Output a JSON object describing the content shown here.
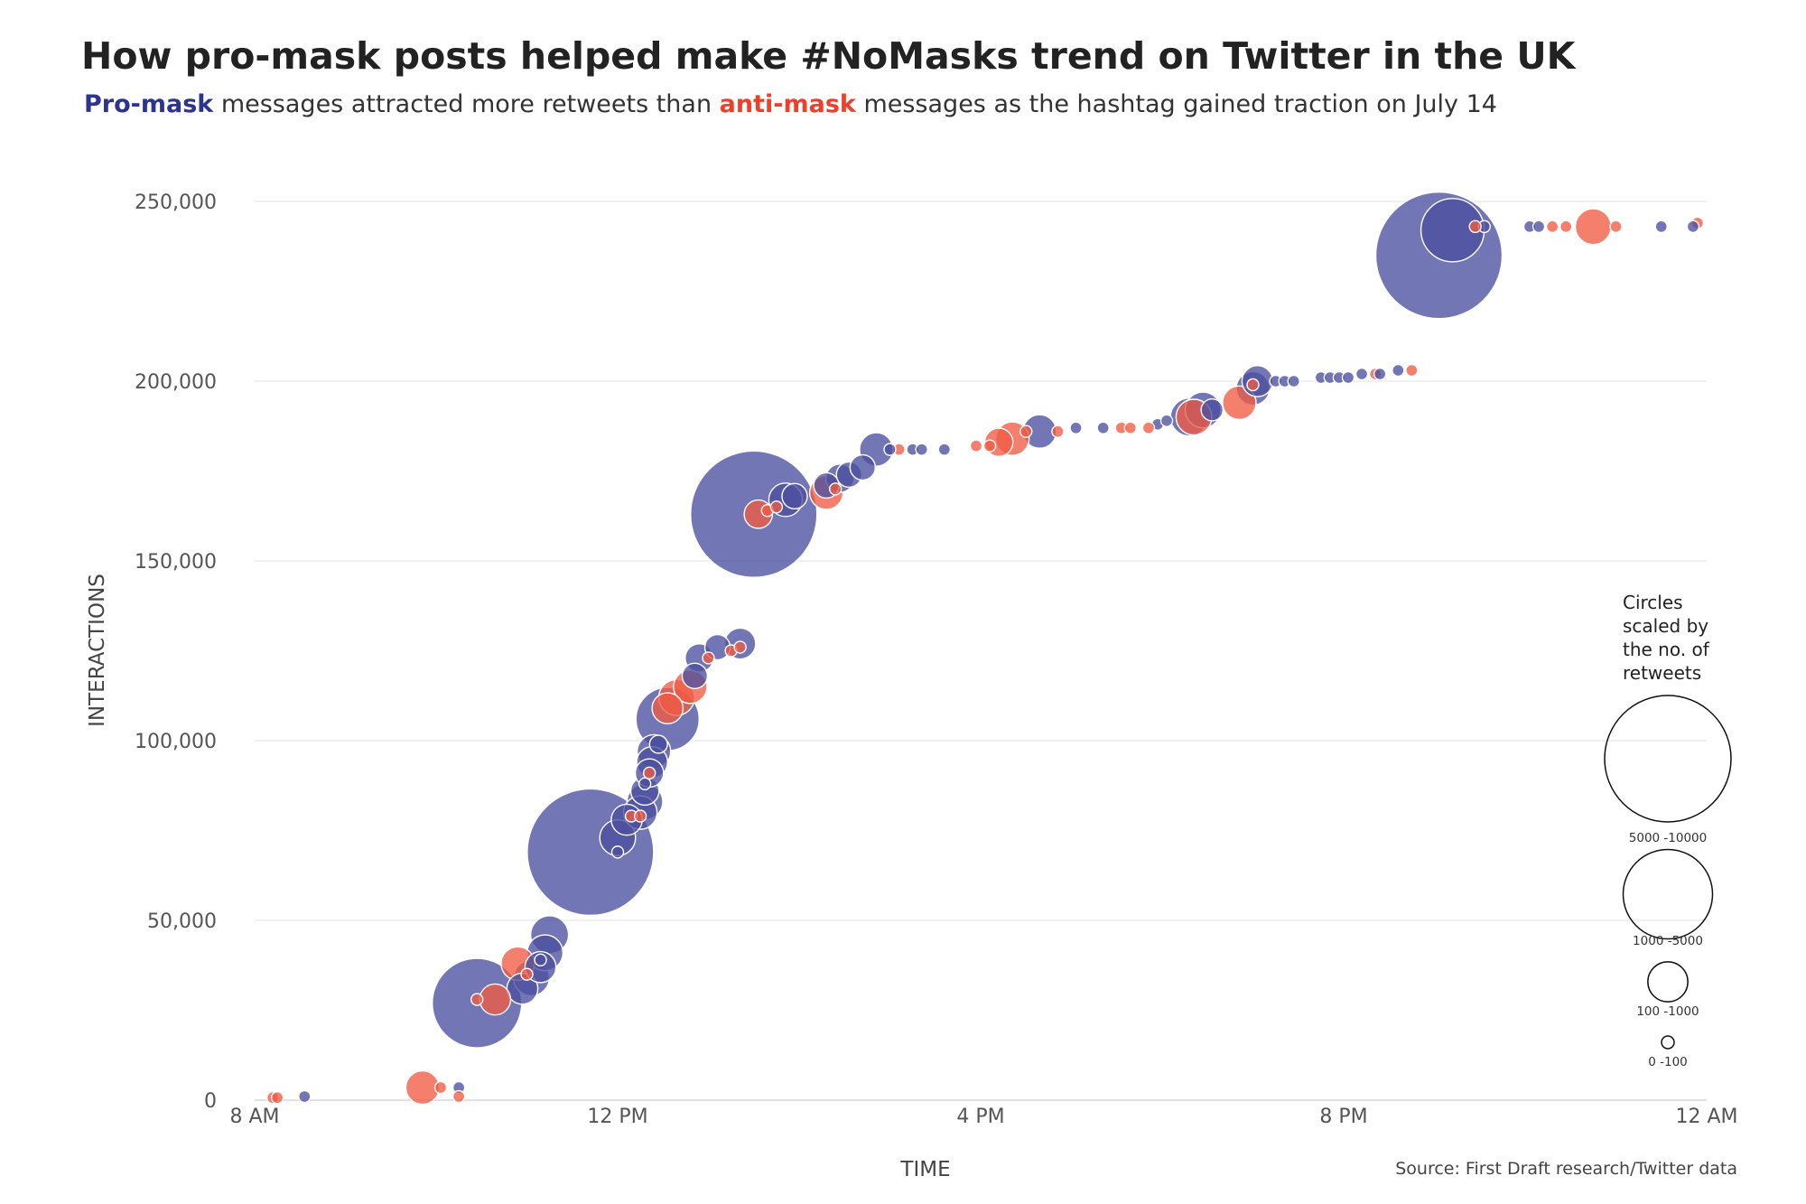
{
  "title": "How pro-mask posts helped make #NoMasks trend on Twitter in the UK",
  "subtitle": {
    "pro_label": "Pro-mask",
    "part1": " messages attracted more retweets than ",
    "anti_label": "anti-mask",
    "part2": " messages as the hashtag gained traction on July 14"
  },
  "source": "Source: First Draft research/Twitter data",
  "colors": {
    "pro": "#4c4f9f",
    "anti": "#ef5b42",
    "grid": "#e6e6e6",
    "axis": "#cfcfcf"
  },
  "legend": {
    "title_lines": [
      "Circles",
      "scaled by",
      "the no. of",
      "retweets"
    ],
    "items": [
      {
        "label": "5000 -10000",
        "retweets": 10000
      },
      {
        "label": "1000 -5000",
        "retweets": 5000
      },
      {
        "label": "100 -1000",
        "retweets": 1000
      },
      {
        "label": "0 -100",
        "retweets": 100
      }
    ]
  },
  "chart_data": {
    "type": "scatter",
    "xlabel": "TIME",
    "ylabel": "INTERACTIONS",
    "xlim": [
      8,
      24
    ],
    "ylim": [
      0,
      250000
    ],
    "x_ticks": [
      {
        "value": 8,
        "label": "8 AM"
      },
      {
        "value": 12,
        "label": "12 PM"
      },
      {
        "value": 16,
        "label": "4 PM"
      },
      {
        "value": 20,
        "label": "8 PM"
      },
      {
        "value": 24,
        "label": "12 AM"
      }
    ],
    "y_ticks": [
      {
        "value": 0,
        "label": "0"
      },
      {
        "value": 50000,
        "label": "50,000"
      },
      {
        "value": 100000,
        "label": "100,000"
      },
      {
        "value": 150000,
        "label": "150,000"
      },
      {
        "value": 200000,
        "label": "200,000"
      },
      {
        "value": 250000,
        "label": "250,000"
      }
    ],
    "size_note": "bubble size = retweets",
    "series": [
      {
        "name": "Pro-mask",
        "color": "#4c4f9f",
        "points": [
          [
            8.55,
            1000,
            30
          ],
          [
            10.25,
            3500,
            40
          ],
          [
            10.45,
            27000,
            5000
          ],
          [
            10.95,
            31000,
            600
          ],
          [
            11.05,
            34000,
            800
          ],
          [
            11.15,
            37000,
            600
          ],
          [
            11.2,
            41000,
            800
          ],
          [
            11.25,
            46000,
            900
          ],
          [
            11.15,
            39000,
            60
          ],
          [
            11.7,
            69000,
            10000
          ],
          [
            12.0,
            73000,
            800
          ],
          [
            12.0,
            69000,
            40
          ],
          [
            12.1,
            78000,
            600
          ],
          [
            12.25,
            80000,
            700
          ],
          [
            12.3,
            83000,
            800
          ],
          [
            12.3,
            86000,
            500
          ],
          [
            12.3,
            88000,
            40
          ],
          [
            12.35,
            91000,
            500
          ],
          [
            12.38,
            94000,
            600
          ],
          [
            12.4,
            97000,
            700
          ],
          [
            12.45,
            99000,
            200
          ],
          [
            12.55,
            106000,
            2500
          ],
          [
            12.85,
            118000,
            400
          ],
          [
            12.9,
            123000,
            500
          ],
          [
            13.1,
            126000,
            400
          ],
          [
            13.35,
            127000,
            600
          ],
          [
            13.5,
            163000,
            10000
          ],
          [
            13.85,
            167000,
            700
          ],
          [
            13.95,
            168000,
            400
          ],
          [
            14.3,
            171000,
            400
          ],
          [
            14.45,
            173000,
            500
          ],
          [
            14.55,
            174000,
            400
          ],
          [
            14.7,
            176000,
            400
          ],
          [
            14.85,
            181000,
            700
          ],
          [
            15.0,
            181000,
            30
          ],
          [
            15.25,
            181000,
            30
          ],
          [
            15.35,
            181000,
            30
          ],
          [
            15.6,
            181000,
            40
          ],
          [
            16.65,
            186000,
            700
          ],
          [
            17.05,
            187000,
            40
          ],
          [
            17.35,
            187000,
            30
          ],
          [
            17.95,
            188000,
            40
          ],
          [
            18.05,
            189000,
            40
          ],
          [
            18.3,
            190000,
            900
          ],
          [
            18.45,
            192000,
            800
          ],
          [
            18.55,
            192000,
            300
          ],
          [
            19.0,
            198000,
            700
          ],
          [
            19.05,
            200000,
            600
          ],
          [
            19.25,
            200000,
            30
          ],
          [
            19.35,
            200000,
            30
          ],
          [
            19.45,
            200000,
            30
          ],
          [
            19.75,
            201000,
            30
          ],
          [
            19.85,
            201000,
            30
          ],
          [
            19.95,
            201000,
            30
          ],
          [
            20.05,
            201000,
            30
          ],
          [
            20.2,
            202000,
            30
          ],
          [
            20.4,
            202000,
            30
          ],
          [
            20.6,
            203000,
            30
          ],
          [
            21.05,
            235000,
            10000
          ],
          [
            21.2,
            242000,
            2500
          ],
          [
            21.55,
            243000,
            40
          ],
          [
            22.05,
            243000,
            30
          ],
          [
            22.15,
            243000,
            30
          ],
          [
            23.5,
            243000,
            30
          ],
          [
            23.85,
            243000,
            30
          ]
        ]
      },
      {
        "name": "Anti-mask",
        "color": "#ef5b42",
        "points": [
          [
            8.2,
            700,
            30
          ],
          [
            8.25,
            700,
            30
          ],
          [
            9.85,
            3500,
            700
          ],
          [
            10.05,
            3500,
            40
          ],
          [
            10.25,
            1000,
            30
          ],
          [
            10.45,
            28000,
            40
          ],
          [
            10.65,
            28000,
            600
          ],
          [
            10.9,
            38000,
            700
          ],
          [
            11.0,
            35000,
            40
          ],
          [
            12.15,
            79000,
            40
          ],
          [
            12.25,
            79000,
            40
          ],
          [
            12.35,
            91000,
            40
          ],
          [
            12.55,
            109000,
            600
          ],
          [
            12.65,
            112000,
            800
          ],
          [
            12.8,
            115000,
            700
          ],
          [
            13.0,
            123000,
            40
          ],
          [
            13.25,
            125000,
            40
          ],
          [
            13.35,
            126000,
            40
          ],
          [
            13.55,
            163000,
            500
          ],
          [
            13.65,
            164000,
            40
          ],
          [
            13.75,
            165000,
            40
          ],
          [
            14.3,
            169000,
            700
          ],
          [
            14.4,
            170000,
            40
          ],
          [
            15.1,
            181000,
            40
          ],
          [
            15.95,
            182000,
            40
          ],
          [
            16.1,
            182000,
            40
          ],
          [
            16.2,
            183000,
            500
          ],
          [
            16.35,
            184000,
            700
          ],
          [
            16.5,
            186000,
            40
          ],
          [
            16.85,
            186000,
            40
          ],
          [
            17.55,
            187000,
            40
          ],
          [
            17.65,
            187000,
            40
          ],
          [
            17.85,
            187000,
            40
          ],
          [
            18.35,
            190000,
            800
          ],
          [
            18.85,
            194000,
            700
          ],
          [
            19.0,
            199000,
            40
          ],
          [
            20.35,
            202000,
            40
          ],
          [
            20.75,
            203000,
            40
          ],
          [
            21.45,
            243000,
            40
          ],
          [
            22.3,
            243000,
            40
          ],
          [
            22.45,
            243000,
            40
          ],
          [
            22.75,
            243000,
            800
          ],
          [
            23.0,
            243000,
            40
          ],
          [
            23.9,
            244000,
            40
          ]
        ]
      }
    ]
  }
}
